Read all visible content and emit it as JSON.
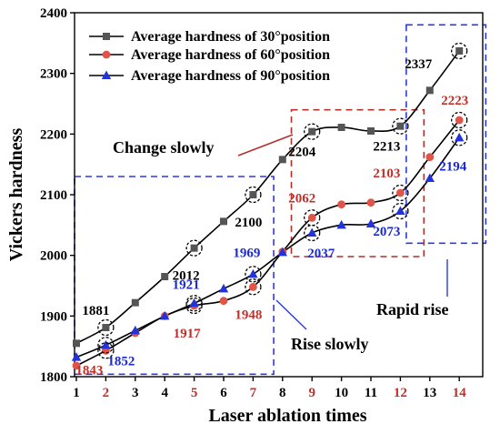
{
  "chart_data": {
    "type": "line",
    "xlabel": "Laser ablation times",
    "ylabel": "Vickers hardness",
    "xlim": [
      1,
      14
    ],
    "ylim": [
      1800,
      2400
    ],
    "x": [
      1,
      2,
      3,
      4,
      5,
      6,
      7,
      8,
      9,
      10,
      11,
      12,
      13,
      14
    ],
    "x_tick_labels": [
      "1",
      "2",
      "3",
      "4",
      "5",
      "6",
      "7",
      "8",
      "9",
      "10",
      "11",
      "12",
      "13",
      "14"
    ],
    "highlighted_x_ticks": [
      2,
      5,
      7,
      9,
      12,
      14
    ],
    "y_ticks": [
      1800,
      1900,
      2000,
      2100,
      2200,
      2300,
      2400
    ],
    "grid": false,
    "legend_position": "top-left",
    "series": [
      {
        "name": "Average hardness of 30°position",
        "color": "#000000",
        "marker_color": "#555555",
        "marker": "square",
        "values": [
          1855,
          1881,
          1922,
          1965,
          2012,
          2056,
          2100,
          2158,
          2204,
          2211,
          2205,
          2213,
          2272,
          2337
        ]
      },
      {
        "name": "Average hardness of 60°position",
        "color": "#000000",
        "marker_color": "#e05548",
        "marker": "circle",
        "values": [
          1818,
          1843,
          1872,
          1900,
          1917,
          1925,
          1948,
          2006,
          2062,
          2084,
          2087,
          2103,
          2162,
          2223
        ]
      },
      {
        "name": "Average hardness of 90°position",
        "color": "#000000",
        "marker_color": "#2233dd",
        "marker": "triangle",
        "values": [
          1832,
          1852,
          1876,
          1900,
          1921,
          1945,
          1969,
          2005,
          2037,
          2050,
          2052,
          2073,
          2127,
          2194
        ]
      }
    ],
    "data_labels": [
      {
        "text": "1881",
        "x": 2,
        "y": 1881,
        "color": "#000000"
      },
      {
        "text": "1843",
        "x": 2,
        "y": 1843,
        "color": "#c0302a"
      },
      {
        "text": "1852",
        "x": 2,
        "y": 1852,
        "color": "#1a2ad0"
      },
      {
        "text": "2012",
        "x": 5,
        "y": 2012,
        "color": "#000000"
      },
      {
        "text": "1921",
        "x": 5,
        "y": 1921,
        "color": "#1a2ad0"
      },
      {
        "text": "1917",
        "x": 5,
        "y": 1917,
        "color": "#c0302a"
      },
      {
        "text": "2100",
        "x": 7,
        "y": 2100,
        "color": "#000000"
      },
      {
        "text": "1969",
        "x": 7,
        "y": 1969,
        "color": "#1a2ad0"
      },
      {
        "text": "1948",
        "x": 7,
        "y": 1948,
        "color": "#c0302a"
      },
      {
        "text": "2204",
        "x": 9,
        "y": 2204,
        "color": "#000000"
      },
      {
        "text": "2062",
        "x": 9,
        "y": 2062,
        "color": "#c0302a"
      },
      {
        "text": "2037",
        "x": 9,
        "y": 2037,
        "color": "#1a2ad0"
      },
      {
        "text": "2213",
        "x": 12,
        "y": 2213,
        "color": "#000000"
      },
      {
        "text": "2103",
        "x": 12,
        "y": 2103,
        "color": "#c0302a"
      },
      {
        "text": "2073",
        "x": 12,
        "y": 2073,
        "color": "#1a2ad0"
      },
      {
        "text": "2337",
        "x": 14,
        "y": 2337,
        "color": "#000000"
      },
      {
        "text": "2223",
        "x": 14,
        "y": 2223,
        "color": "#c0302a"
      },
      {
        "text": "2194",
        "x": 14,
        "y": 2194,
        "color": "#1a2ad0"
      }
    ],
    "annotations": [
      {
        "text": "Change slowly"
      },
      {
        "text": "Rise slowly"
      },
      {
        "text": "Rapid rise"
      }
    ],
    "highlight_color": "#c0302a",
    "box_blue": "#2a3ae0",
    "box_red": "#b0302a"
  }
}
